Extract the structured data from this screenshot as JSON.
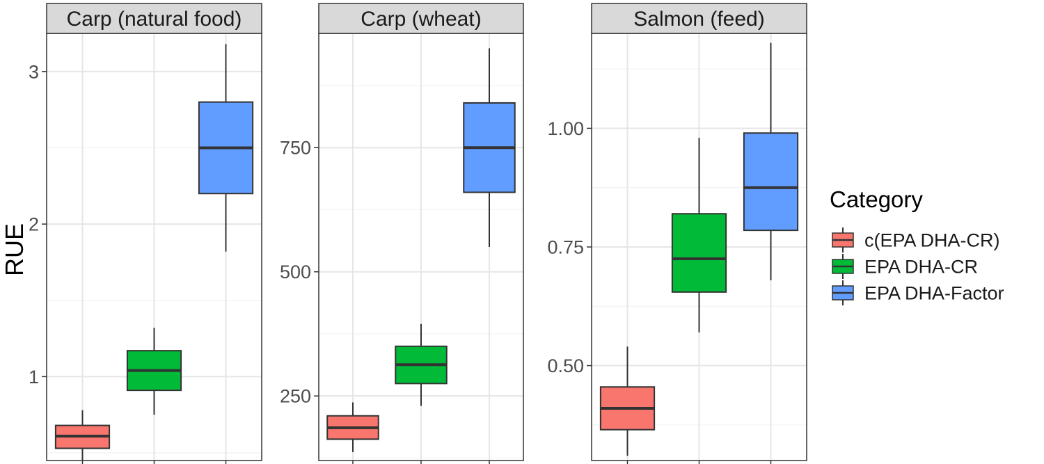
{
  "chart_data": {
    "type": "boxplot",
    "ylabel": "RUE",
    "xlabel": "",
    "legend": {
      "title": "Category",
      "placement": "right",
      "entries": [
        {
          "label": "c(EPA DHA-CR)",
          "color": "#F8766D"
        },
        {
          "label": "EPA DHA-CR",
          "color": "#00BA38"
        },
        {
          "label": "EPA DHA-Factor",
          "color": "#619CFF"
        }
      ]
    },
    "panels": [
      {
        "title": "Carp (natural food)",
        "ylim": [
          0.45,
          3.25
        ],
        "yticks": [
          1,
          2,
          3
        ],
        "ytick_labels": [
          "1",
          "2",
          "3"
        ],
        "boxes": [
          {
            "category": "c(EPA DHA-CR)",
            "min": 0.45,
            "q1": 0.53,
            "median": 0.61,
            "q3": 0.68,
            "max": 0.78
          },
          {
            "category": "EPA DHA-CR",
            "min": 0.75,
            "q1": 0.91,
            "median": 1.04,
            "q3": 1.17,
            "max": 1.32
          },
          {
            "category": "EPA DHA-Factor",
            "min": 1.82,
            "q1": 2.2,
            "median": 2.5,
            "q3": 2.8,
            "max": 3.18
          }
        ]
      },
      {
        "title": "Carp (wheat)",
        "ylim": [
          120,
          980
        ],
        "yticks": [
          250,
          500,
          750
        ],
        "ytick_labels": [
          "250",
          "500",
          "750"
        ],
        "boxes": [
          {
            "category": "c(EPA DHA-CR)",
            "min": 137,
            "q1": 163,
            "median": 186,
            "q3": 210,
            "max": 237
          },
          {
            "category": "EPA DHA-CR",
            "min": 230,
            "q1": 275,
            "median": 313,
            "q3": 350,
            "max": 395
          },
          {
            "category": "EPA DHA-Factor",
            "min": 550,
            "q1": 660,
            "median": 750,
            "q3": 840,
            "max": 950
          }
        ]
      },
      {
        "title": "Salmon (feed)",
        "ylim": [
          0.3,
          1.2
        ],
        "yticks": [
          0.5,
          0.75,
          1.0
        ],
        "ytick_labels": [
          "0.50",
          "0.75",
          "1.00"
        ],
        "boxes": [
          {
            "category": "c(EPA DHA-CR)",
            "min": 0.31,
            "q1": 0.365,
            "median": 0.41,
            "q3": 0.455,
            "max": 0.54
          },
          {
            "category": "EPA DHA-CR",
            "min": 0.57,
            "q1": 0.655,
            "median": 0.725,
            "q3": 0.82,
            "max": 0.98
          },
          {
            "category": "EPA DHA-Factor",
            "min": 0.68,
            "q1": 0.785,
            "median": 0.875,
            "q3": 0.99,
            "max": 1.18
          }
        ]
      }
    ]
  }
}
